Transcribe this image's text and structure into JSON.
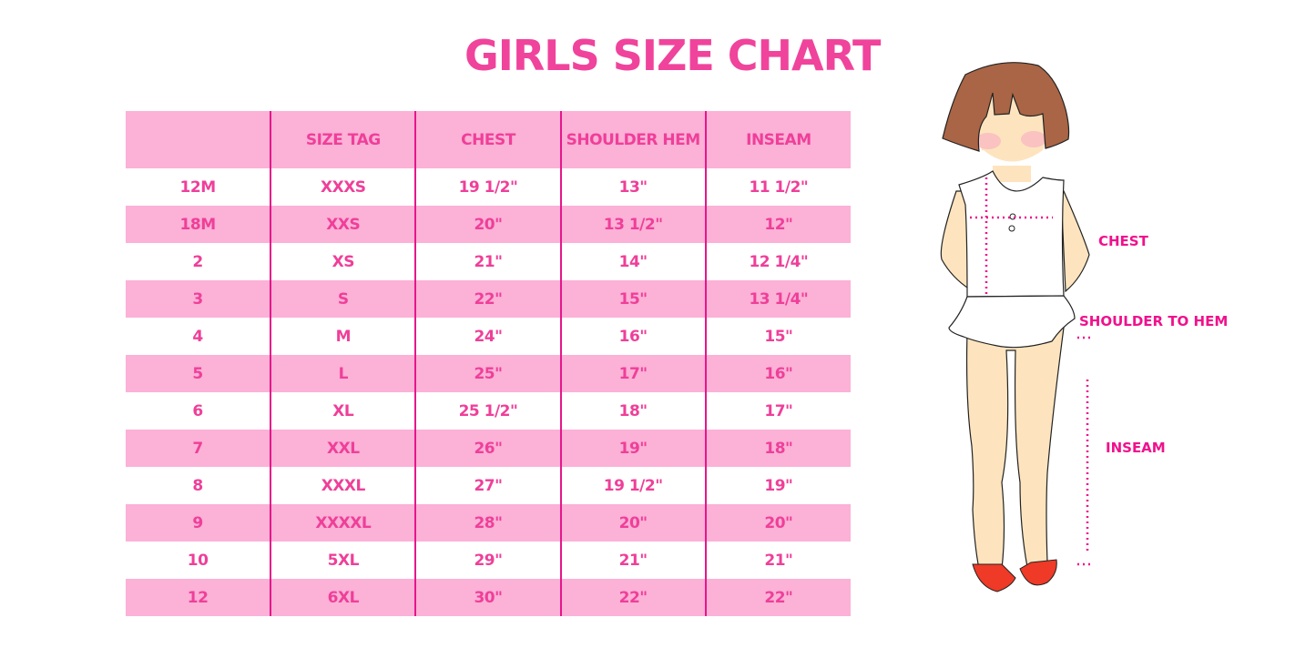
{
  "title": "GIRLS SIZE CHART",
  "table": {
    "headers": [
      "",
      "SIZE TAG",
      "CHEST",
      "SHOULDER HEM",
      "INSEAM"
    ],
    "rows": [
      [
        "12M",
        "XXXS",
        "19 1/2\"",
        "13\"",
        "11 1/2\""
      ],
      [
        "18M",
        "XXS",
        "20\"",
        "13 1/2\"",
        "12\""
      ],
      [
        "2",
        "XS",
        "21\"",
        "14\"",
        "12 1/4\""
      ],
      [
        "3",
        "S",
        "22\"",
        "15\"",
        "13 1/4\""
      ],
      [
        "4",
        "M",
        "24\"",
        "16\"",
        "15\""
      ],
      [
        "5",
        "L",
        "25\"",
        "17\"",
        "16\""
      ],
      [
        "6",
        "XL",
        "25 1/2\"",
        "18\"",
        "17\""
      ],
      [
        "7",
        "XXL",
        "26\"",
        "19\"",
        "18\""
      ],
      [
        "8",
        "XXXL",
        "27\"",
        "19 1/2\"",
        "19\""
      ],
      [
        "9",
        "XXXXL",
        "28\"",
        "20\"",
        "20\""
      ],
      [
        "10",
        "5XL",
        "29\"",
        "21\"",
        "21\""
      ],
      [
        "12",
        "6XL",
        "30\"",
        "22\"",
        "22\""
      ]
    ]
  },
  "illustration": {
    "labels": {
      "chest": "CHEST",
      "shoulder": "SHOULDER TO HEM",
      "inseam": "INSEAM"
    }
  },
  "colors": {
    "accent": "#f0439c",
    "band": "#fcb1d7",
    "divider": "#e6168a"
  }
}
